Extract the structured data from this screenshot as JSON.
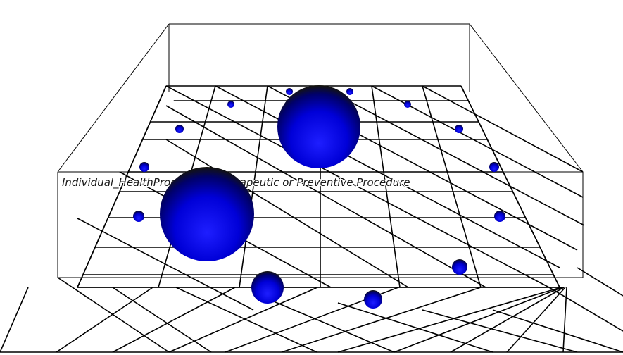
{
  "viewer": {
    "caption": "Individual_HealthProcedure_|Therapeutic or Preventive Procedure"
  },
  "colors": {
    "background": "#ffffff",
    "wireframe": "#000000",
    "node_highlight": "#3a3aff",
    "node_core": "#0000e0",
    "node_shadow": "#0a0a2a"
  },
  "nodes": [
    {
      "id": "node-large-center-top",
      "size": "large"
    },
    {
      "id": "node-large-left",
      "size": "large"
    },
    {
      "id": "node-medium-bottom",
      "size": "medium"
    },
    {
      "id": "node-small-bottom-right",
      "size": "small"
    },
    {
      "id": "node-small-right-low",
      "size": "small"
    }
  ]
}
